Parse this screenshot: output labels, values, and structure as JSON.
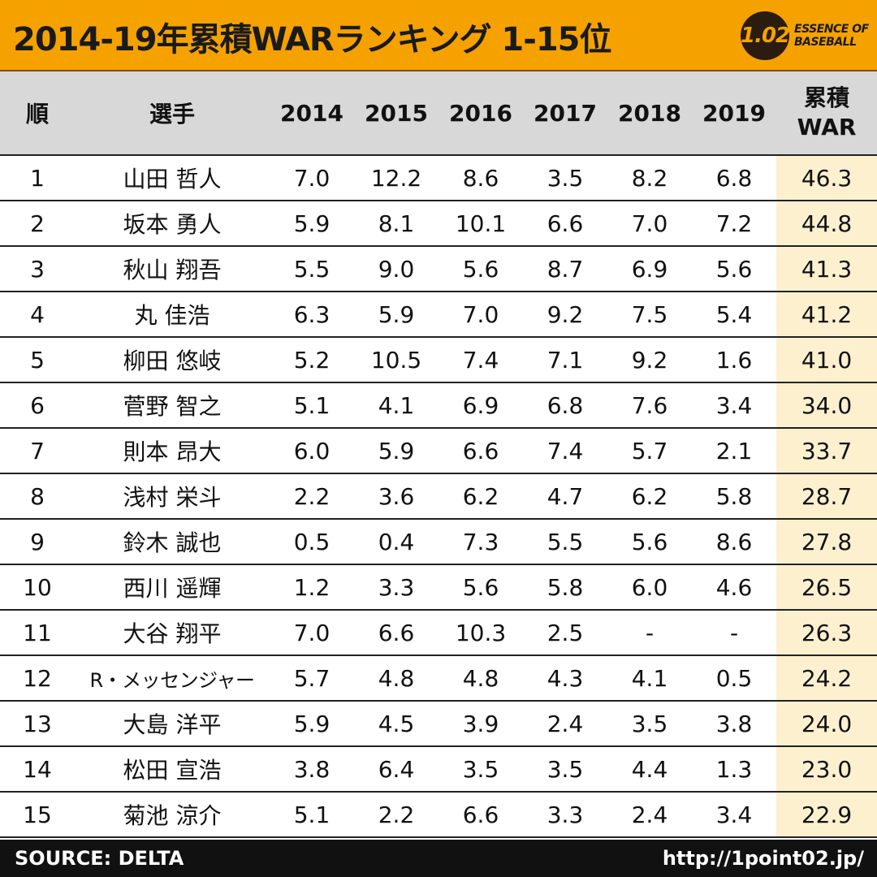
{
  "header": {
    "title": "2014-19年累積WARランキング 1-15位",
    "logo_mark": "1.02",
    "logo_line1": "ESSENCE OF",
    "logo_line2": "BASEBALL"
  },
  "chart_data": {
    "type": "table",
    "title": "2014-19年累積WARランキング 1-15位",
    "columns": [
      "順",
      "選手",
      "2014",
      "2015",
      "2016",
      "2017",
      "2018",
      "2019",
      "累積",
      "WAR"
    ],
    "rows": [
      {
        "rank": "1",
        "name": "山田 哲人",
        "y": [
          "7.0",
          "12.2",
          "8.6",
          "3.5",
          "8.2",
          "6.8"
        ],
        "total": "46.3"
      },
      {
        "rank": "2",
        "name": "坂本 勇人",
        "y": [
          "5.9",
          "8.1",
          "10.1",
          "6.6",
          "7.0",
          "7.2"
        ],
        "total": "44.8"
      },
      {
        "rank": "3",
        "name": "秋山 翔吾",
        "y": [
          "5.5",
          "9.0",
          "5.6",
          "8.7",
          "6.9",
          "5.6"
        ],
        "total": "41.3"
      },
      {
        "rank": "4",
        "name": "丸 佳浩",
        "y": [
          "6.3",
          "5.9",
          "7.0",
          "9.2",
          "7.5",
          "5.4"
        ],
        "total": "41.2"
      },
      {
        "rank": "5",
        "name": "柳田 悠岐",
        "y": [
          "5.2",
          "10.5",
          "7.4",
          "7.1",
          "9.2",
          "1.6"
        ],
        "total": "41.0"
      },
      {
        "rank": "6",
        "name": "菅野 智之",
        "y": [
          "5.1",
          "4.1",
          "6.9",
          "6.8",
          "7.6",
          "3.4"
        ],
        "total": "34.0"
      },
      {
        "rank": "7",
        "name": "則本 昂大",
        "y": [
          "6.0",
          "5.9",
          "6.6",
          "7.4",
          "5.7",
          "2.1"
        ],
        "total": "33.7"
      },
      {
        "rank": "8",
        "name": "浅村 栄斗",
        "y": [
          "2.2",
          "3.6",
          "6.2",
          "4.7",
          "6.2",
          "5.8"
        ],
        "total": "28.7"
      },
      {
        "rank": "9",
        "name": "鈴木 誠也",
        "y": [
          "0.5",
          "0.4",
          "7.3",
          "5.5",
          "5.6",
          "8.6"
        ],
        "total": "27.8"
      },
      {
        "rank": "10",
        "name": "西川 遥輝",
        "y": [
          "1.2",
          "3.3",
          "5.6",
          "5.8",
          "6.0",
          "4.6"
        ],
        "total": "26.5"
      },
      {
        "rank": "11",
        "name": "大谷 翔平",
        "y": [
          "7.0",
          "6.6",
          "10.3",
          "2.5",
          "-",
          "-"
        ],
        "total": "26.3"
      },
      {
        "rank": "12",
        "name": "R・メッセンジャー",
        "y": [
          "5.7",
          "4.8",
          "4.8",
          "4.3",
          "4.1",
          "0.5"
        ],
        "total": "24.2"
      },
      {
        "rank": "13",
        "name": "大島 洋平",
        "y": [
          "5.9",
          "4.5",
          "3.9",
          "2.4",
          "3.5",
          "3.8"
        ],
        "total": "24.0"
      },
      {
        "rank": "14",
        "name": "松田 宣浩",
        "y": [
          "3.8",
          "6.4",
          "3.5",
          "3.5",
          "4.4",
          "1.3"
        ],
        "total": "23.0"
      },
      {
        "rank": "15",
        "name": "菊池 涼介",
        "y": [
          "5.1",
          "2.2",
          "6.6",
          "3.3",
          "2.4",
          "3.4"
        ],
        "total": "22.9"
      }
    ]
  },
  "footer": {
    "source": "SOURCE: DELTA",
    "url": "http://1point02.jp/"
  },
  "colors": {
    "header_bg": "#f5a200",
    "thead_bg": "#d8d8d8",
    "total_bg": "#fdf0cf",
    "footer_bg": "#111111"
  }
}
